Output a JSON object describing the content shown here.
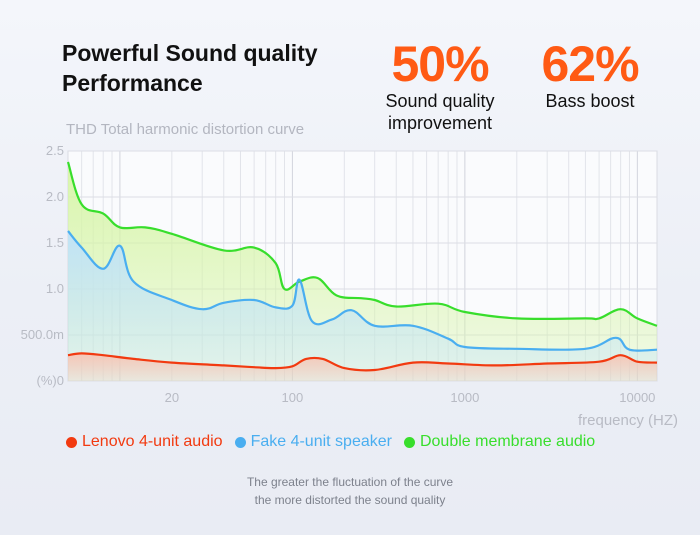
{
  "headline": {
    "line1": "Powerful Sound quality",
    "line2": "Performance"
  },
  "stats": [
    {
      "value": "50%",
      "caption_line1": "Sound quality",
      "caption_line2": "improvement"
    },
    {
      "value": "62%",
      "caption_line1": "Bass boost",
      "caption_line2": ""
    }
  ],
  "chart_data": {
    "type": "area",
    "title": "THD Total harmonic distortion curve",
    "xlabel": "frequency (HZ)",
    "ylabel": "",
    "x_scale": "log",
    "xlim": [
      5,
      13000
    ],
    "ylim": [
      0,
      2.5
    ],
    "x_ticks": [
      20,
      100,
      1000,
      10000
    ],
    "x_tick_labels": [
      "20",
      "100",
      "1000",
      "10000"
    ],
    "y_ticks": [
      0,
      0.5,
      1.0,
      1.5,
      2.0,
      2.5
    ],
    "y_tick_labels": [
      "(%)0",
      "500.0m",
      "1.0",
      "1.5",
      "2.0",
      "2.5"
    ],
    "grid": true,
    "legend_position": "bottom",
    "series": [
      {
        "name": "Lenovo 4-unit audio",
        "color": "#f23a10",
        "fill": "#f7c4b4",
        "points": [
          [
            5,
            0.28
          ],
          [
            6,
            0.3
          ],
          [
            8,
            0.28
          ],
          [
            12,
            0.24
          ],
          [
            20,
            0.2
          ],
          [
            40,
            0.17
          ],
          [
            60,
            0.15
          ],
          [
            80,
            0.14
          ],
          [
            100,
            0.16
          ],
          [
            120,
            0.24
          ],
          [
            150,
            0.24
          ],
          [
            200,
            0.14
          ],
          [
            300,
            0.12
          ],
          [
            500,
            0.2
          ],
          [
            800,
            0.19
          ],
          [
            1500,
            0.17
          ],
          [
            3000,
            0.19
          ],
          [
            6000,
            0.21
          ],
          [
            8000,
            0.28
          ],
          [
            10000,
            0.21
          ],
          [
            13000,
            0.2
          ]
        ]
      },
      {
        "name": "Fake 4-unit speaker",
        "color": "#4aaef0",
        "fill": "#bfe2fa",
        "points": [
          [
            5,
            1.63
          ],
          [
            6,
            1.45
          ],
          [
            8,
            1.22
          ],
          [
            10,
            1.47
          ],
          [
            12,
            1.08
          ],
          [
            20,
            0.88
          ],
          [
            30,
            0.78
          ],
          [
            40,
            0.85
          ],
          [
            60,
            0.88
          ],
          [
            80,
            0.8
          ],
          [
            100,
            0.82
          ],
          [
            110,
            1.1
          ],
          [
            130,
            0.65
          ],
          [
            170,
            0.67
          ],
          [
            220,
            0.77
          ],
          [
            300,
            0.6
          ],
          [
            500,
            0.6
          ],
          [
            800,
            0.46
          ],
          [
            1000,
            0.37
          ],
          [
            2000,
            0.35
          ],
          [
            5000,
            0.35
          ],
          [
            7500,
            0.47
          ],
          [
            9000,
            0.34
          ],
          [
            13000,
            0.34
          ]
        ]
      },
      {
        "name": "Double membrane audio",
        "color": "#38de2c",
        "fill": "#d6f5a6",
        "points": [
          [
            5,
            2.38
          ],
          [
            6,
            1.92
          ],
          [
            8,
            1.82
          ],
          [
            10,
            1.67
          ],
          [
            14,
            1.67
          ],
          [
            20,
            1.6
          ],
          [
            40,
            1.42
          ],
          [
            60,
            1.45
          ],
          [
            80,
            1.28
          ],
          [
            90,
            1.0
          ],
          [
            110,
            1.08
          ],
          [
            140,
            1.12
          ],
          [
            180,
            0.93
          ],
          [
            250,
            0.9
          ],
          [
            300,
            0.88
          ],
          [
            400,
            0.81
          ],
          [
            700,
            0.84
          ],
          [
            1000,
            0.75
          ],
          [
            2000,
            0.68
          ],
          [
            5000,
            0.68
          ],
          [
            6000,
            0.68
          ],
          [
            8000,
            0.78
          ],
          [
            10000,
            0.68
          ],
          [
            13000,
            0.6
          ]
        ]
      }
    ]
  },
  "note": {
    "line1": "The greater the fluctuation of the curve",
    "line2": "the more distorted the sound quality"
  }
}
